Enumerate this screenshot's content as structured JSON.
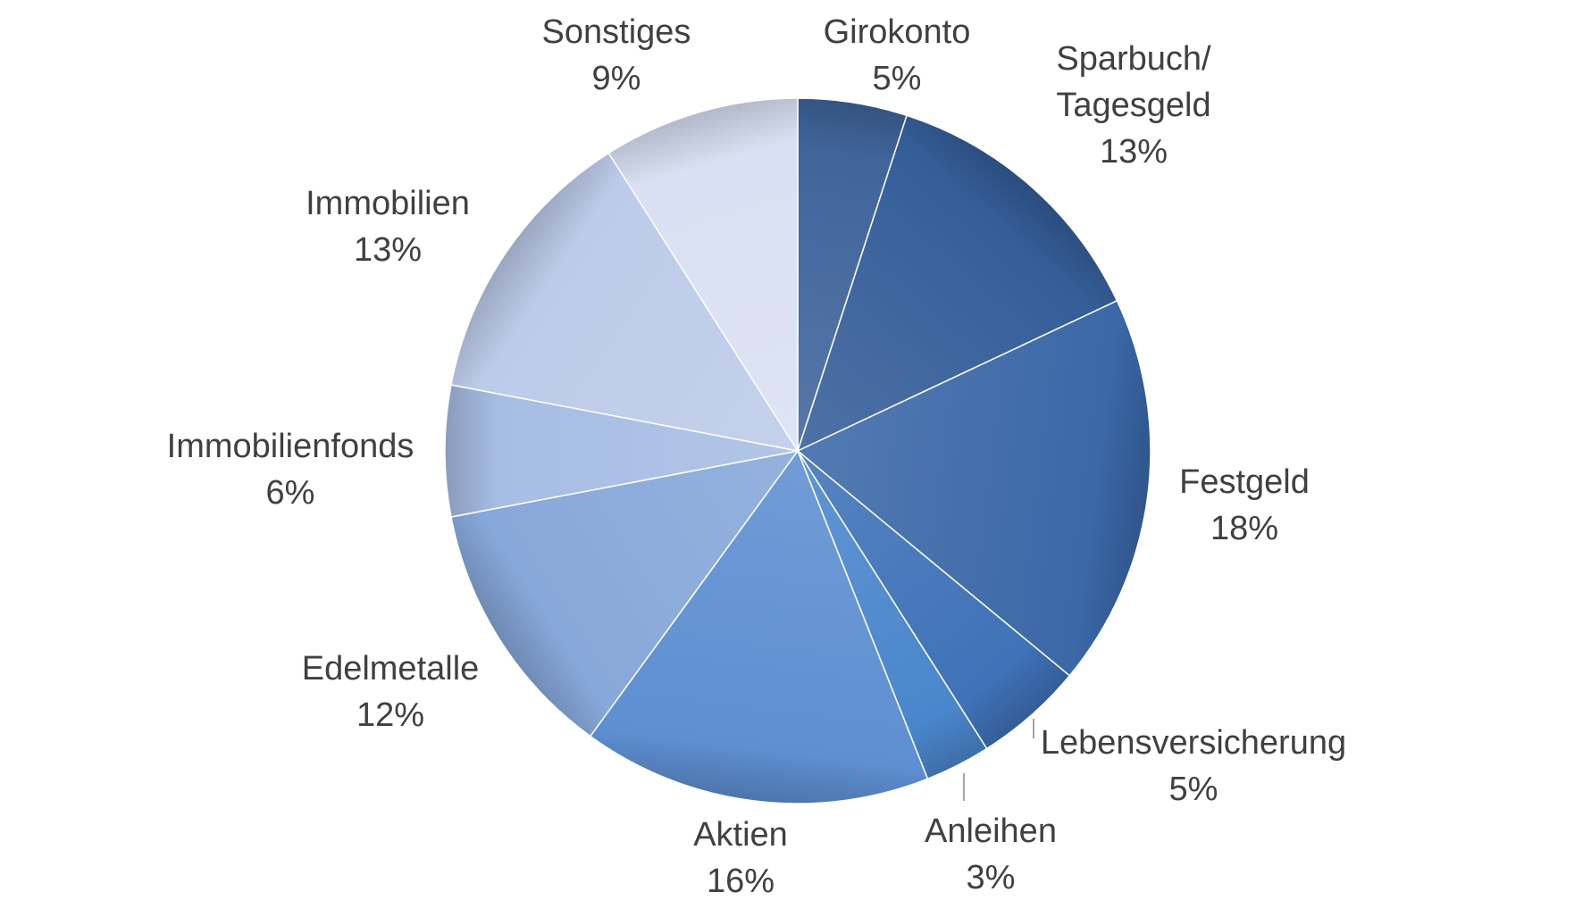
{
  "chart_data": {
    "type": "pie",
    "start_angle_deg": 0,
    "direction": "clockwise",
    "slices": [
      {
        "name": "Girokonto",
        "label_lines": [
          "Girokonto"
        ],
        "value": 5,
        "value_label": "5%",
        "color": "#40659b"
      },
      {
        "name": "Sparbuch/ Tagesgeld",
        "label_lines": [
          "Sparbuch/",
          "Tagesgeld"
        ],
        "value": 13,
        "value_label": "13%",
        "color": "#355e99"
      },
      {
        "name": "Festgeld",
        "label_lines": [
          "Festgeld"
        ],
        "value": 18,
        "value_label": "18%",
        "color": "#3b68a8"
      },
      {
        "name": "Lebensversicherung",
        "label_lines": [
          "Lebensversicherung"
        ],
        "value": 5,
        "value_label": "5%",
        "color": "#3f72b8"
      },
      {
        "name": "Anleihen",
        "label_lines": [
          "Anleihen"
        ],
        "value": 3,
        "value_label": "3%",
        "color": "#4a86cc"
      },
      {
        "name": "Aktien",
        "label_lines": [
          "Aktien"
        ],
        "value": 16,
        "value_label": "16%",
        "color": "#5e8fd1"
      },
      {
        "name": "Edelmetalle",
        "label_lines": [
          "Edelmetalle"
        ],
        "value": 12,
        "value_label": "12%",
        "color": "#87a8da"
      },
      {
        "name": "Immobilienfonds",
        "label_lines": [
          "Immobilienfonds"
        ],
        "value": 6,
        "value_label": "6%",
        "color": "#a7bde4"
      },
      {
        "name": "Immobilien",
        "label_lines": [
          "Immobilien"
        ],
        "value": 13,
        "value_label": "13%",
        "color": "#bccbe9"
      },
      {
        "name": "Sonstiges",
        "label_lines": [
          "Sonstiges"
        ],
        "value": 9,
        "value_label": "9%",
        "color": "#d9e0f3"
      }
    ]
  }
}
